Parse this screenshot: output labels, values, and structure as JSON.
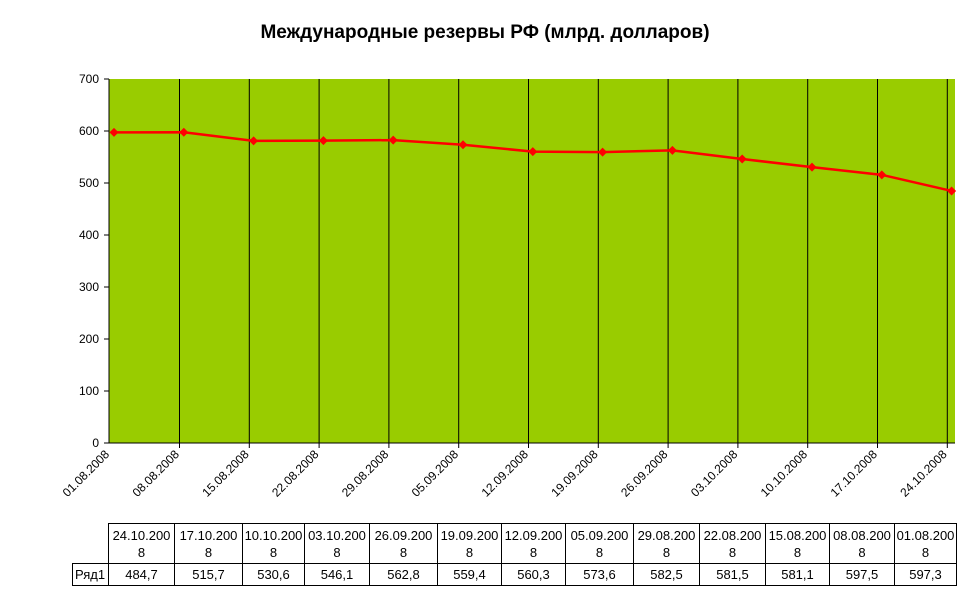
{
  "chart_data": {
    "type": "line",
    "title": "Международные резервы РФ (млрд. долларов)",
    "xlabel": "",
    "ylabel": "",
    "ylim": [
      0,
      700
    ],
    "yticks": [
      "0",
      "100",
      "200",
      "300",
      "400",
      "500",
      "600",
      "700"
    ],
    "x": [
      "01.08.2008",
      "08.08.2008",
      "15.08.2008",
      "22.08.2008",
      "29.08.2008",
      "05.09.2008",
      "12.09.2008",
      "19.09.2008",
      "26.09.2008",
      "03.10.2008",
      "10.10.2008",
      "17.10.2008",
      "24.10.2008"
    ],
    "series": [
      {
        "name": "Ряд1",
        "values": [
          597.3,
          597.5,
          581.1,
          581.5,
          582.5,
          573.6,
          560.3,
          559.4,
          562.8,
          546.1,
          530.6,
          515.7,
          484.7
        ]
      }
    ],
    "grid": true,
    "colors": {
      "plot_bg": "#99cc00",
      "line": "#ff0000",
      "marker": "#ff0000",
      "gridline": "#000000"
    }
  },
  "table": {
    "row_label": "Ряд1",
    "header": [
      [
        "24.10.200",
        "8"
      ],
      [
        "17.10.200",
        "8"
      ],
      [
        "10.10.200",
        "8"
      ],
      [
        "03.10.200",
        "8"
      ],
      [
        "26.09.200",
        "8"
      ],
      [
        "19.09.200",
        "8"
      ],
      [
        "12.09.200",
        "8"
      ],
      [
        "05.09.200",
        "8"
      ],
      [
        "29.08.200",
        "8"
      ],
      [
        "22.08.200",
        "8"
      ],
      [
        "15.08.200",
        "8"
      ],
      [
        "08.08.200",
        "8"
      ],
      [
        "01.08.200",
        "8"
      ]
    ],
    "values": [
      "484,7",
      "515,7",
      "530,6",
      "546,1",
      "562,8",
      "559,4",
      "560,3",
      "573,6",
      "582,5",
      "581,5",
      "581,1",
      "597,5",
      "597,3"
    ]
  }
}
